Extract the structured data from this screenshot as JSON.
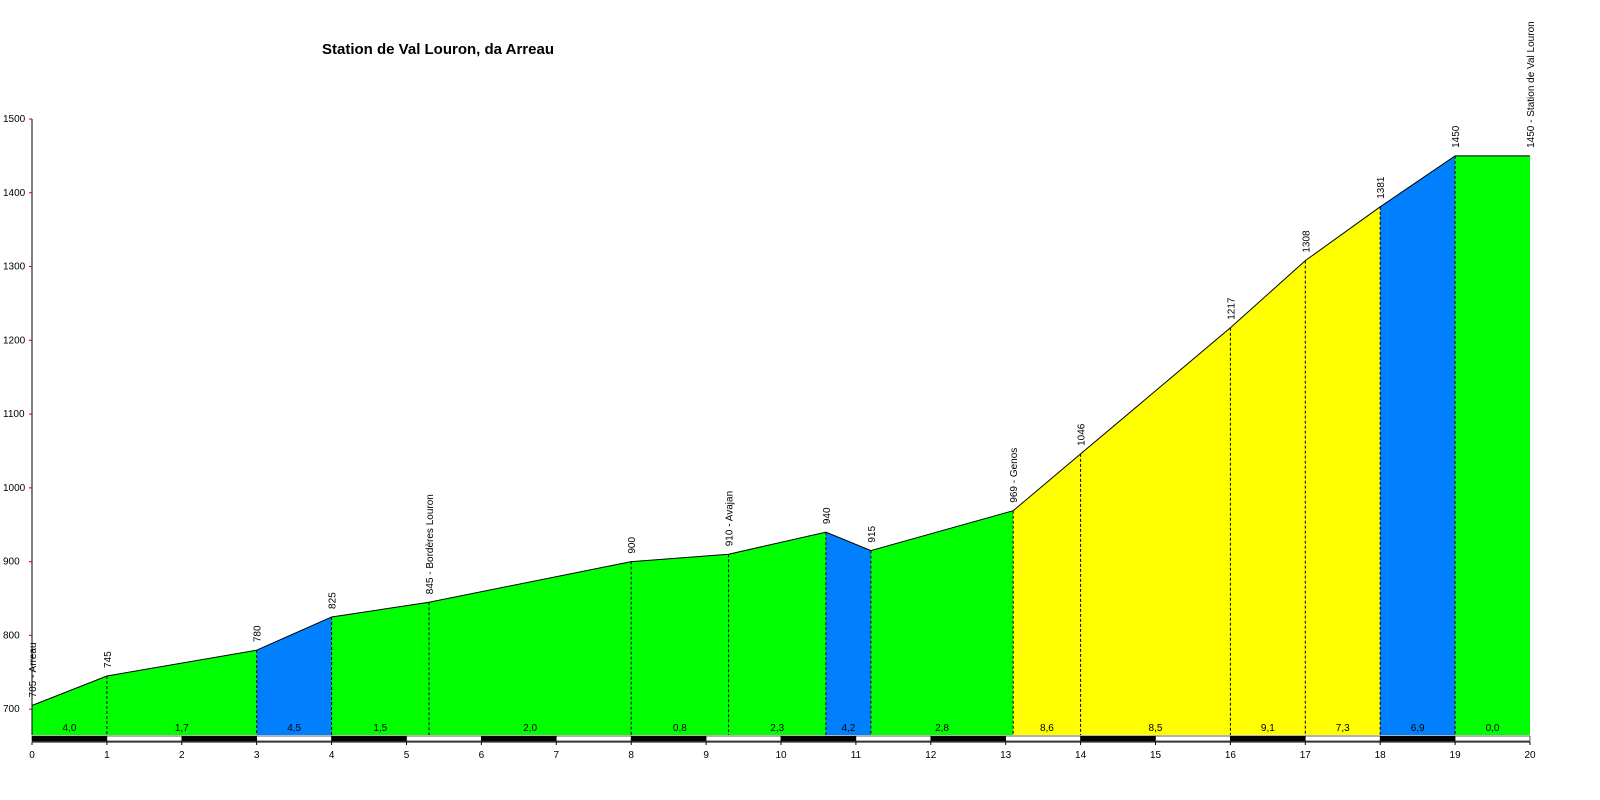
{
  "colors": {
    "green": "#00ff00",
    "blue": "#0080ff",
    "yellow": "#ffff00",
    "axis": "#000000",
    "ytick": "#cc0000"
  },
  "chart_data": {
    "type": "area",
    "title": "Station de Val Louron, da Arreau",
    "xlabel": "",
    "ylabel": "",
    "xlim": [
      0,
      20
    ],
    "ylim": [
      665,
      1500
    ],
    "grid": false,
    "x_ticks": [
      "0",
      "1",
      "2",
      "3",
      "4",
      "5",
      "6",
      "7",
      "8",
      "9",
      "10",
      "11",
      "12",
      "13",
      "14",
      "15",
      "16",
      "17",
      "18",
      "19",
      "20"
    ],
    "y_ticks": [
      "700",
      "800",
      "900",
      "1000",
      "1100",
      "1200",
      "1300",
      "1400",
      "1500"
    ],
    "profile": [
      {
        "x": 0,
        "y": 705
      },
      {
        "x": 1,
        "y": 745
      },
      {
        "x": 3,
        "y": 780
      },
      {
        "x": 4,
        "y": 825
      },
      {
        "x": 5.3,
        "y": 845
      },
      {
        "x": 8,
        "y": 900
      },
      {
        "x": 9.3,
        "y": 910
      },
      {
        "x": 10.6,
        "y": 940
      },
      {
        "x": 11.2,
        "y": 915
      },
      {
        "x": 13.1,
        "y": 969
      },
      {
        "x": 14,
        "y": 1046
      },
      {
        "x": 16,
        "y": 1217
      },
      {
        "x": 17,
        "y": 1308
      },
      {
        "x": 18,
        "y": 1381
      },
      {
        "x": 19,
        "y": 1450
      },
      {
        "x": 20,
        "y": 1450
      }
    ],
    "point_labels": [
      {
        "x": 0,
        "y": 705,
        "text": "705 - Arreau"
      },
      {
        "x": 1,
        "y": 745,
        "text": "745"
      },
      {
        "x": 3,
        "y": 780,
        "text": "780"
      },
      {
        "x": 4,
        "y": 825,
        "text": "825"
      },
      {
        "x": 5.3,
        "y": 845,
        "text": "845 - Bordères Louron"
      },
      {
        "x": 8,
        "y": 900,
        "text": "900"
      },
      {
        "x": 9.3,
        "y": 910,
        "text": "910 - Avajan"
      },
      {
        "x": 10.6,
        "y": 940,
        "text": "940"
      },
      {
        "x": 11.2,
        "y": 915,
        "text": "915"
      },
      {
        "x": 13.1,
        "y": 969,
        "text": "969 - Genos"
      },
      {
        "x": 14,
        "y": 1046,
        "text": "1046"
      },
      {
        "x": 16,
        "y": 1217,
        "text": "1217"
      },
      {
        "x": 17,
        "y": 1308,
        "text": "1308"
      },
      {
        "x": 18,
        "y": 1381,
        "text": "1381"
      },
      {
        "x": 19,
        "y": 1450,
        "text": "1450"
      },
      {
        "x": 20,
        "y": 1450,
        "text": "1450 - Station de Val Louron"
      }
    ],
    "segments": [
      {
        "x0": 0,
        "x1": 1,
        "gradient": "4,0",
        "color": "green"
      },
      {
        "x0": 1,
        "x1": 3,
        "gradient": "1,7",
        "color": "green"
      },
      {
        "x0": 3,
        "x1": 4,
        "gradient": "4,5",
        "color": "blue"
      },
      {
        "x0": 4,
        "x1": 5.3,
        "gradient": "1,5",
        "color": "green"
      },
      {
        "x0": 5.3,
        "x1": 8,
        "gradient": "2,0",
        "color": "green"
      },
      {
        "x0": 8,
        "x1": 9.3,
        "gradient": "0,8",
        "color": "green"
      },
      {
        "x0": 9.3,
        "x1": 10.6,
        "gradient": "2,3",
        "color": "green"
      },
      {
        "x0": 10.6,
        "x1": 11.2,
        "gradient": "4,2",
        "color": "blue"
      },
      {
        "x0": 11.2,
        "x1": 13.1,
        "gradient": "2,8",
        "color": "green"
      },
      {
        "x0": 13.1,
        "x1": 14,
        "gradient": "8,6",
        "color": "yellow"
      },
      {
        "x0": 14,
        "x1": 16,
        "gradient": "8,5",
        "color": "yellow"
      },
      {
        "x0": 16,
        "x1": 17,
        "gradient": "9,1",
        "color": "yellow"
      },
      {
        "x0": 17,
        "x1": 18,
        "gradient": "7,3",
        "color": "yellow"
      },
      {
        "x0": 18,
        "x1": 19,
        "gradient": "6,9",
        "color": "blue"
      },
      {
        "x0": 19,
        "x1": 20,
        "gradient": "0,0",
        "color": "green"
      }
    ]
  }
}
